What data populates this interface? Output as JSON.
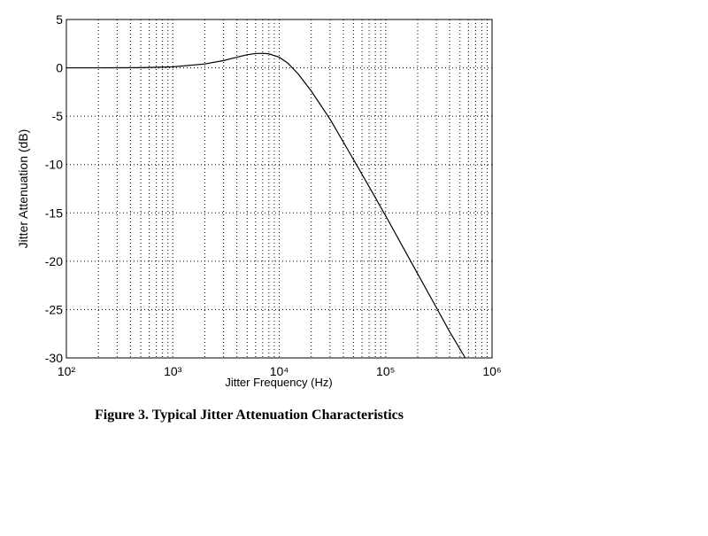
{
  "chart_data": {
    "type": "line",
    "x_label": "Jitter Frequency (Hz)",
    "y_label": "Jitter Attenuation (dB)",
    "caption": "Figure 3.  Typical Jitter Attenuation Characteristics",
    "xscale": "log",
    "xlim": [
      100,
      1000000
    ],
    "ylim": [
      -30,
      5
    ],
    "xticks": [
      {
        "value": 100,
        "label": "10²"
      },
      {
        "value": 1000,
        "label": "10³"
      },
      {
        "value": 10000,
        "label": "10⁴"
      },
      {
        "value": 100000,
        "label": "10⁵"
      },
      {
        "value": 1000000,
        "label": "10⁶"
      }
    ],
    "x_minor_ticks": [
      200,
      300,
      400,
      500,
      600,
      700,
      800,
      900,
      2000,
      3000,
      4000,
      5000,
      6000,
      7000,
      8000,
      9000,
      20000,
      30000,
      40000,
      50000,
      60000,
      70000,
      80000,
      90000,
      200000,
      300000,
      400000,
      500000,
      600000,
      700000,
      800000,
      900000
    ],
    "yticks": [
      -30,
      -25,
      -20,
      -15,
      -10,
      -5,
      0,
      5
    ],
    "grid": true,
    "series": [
      {
        "color": "#000000",
        "x": [
          100,
          200,
          500,
          1000,
          2000,
          3000,
          4000,
          5000,
          6000,
          7000,
          8000,
          10000,
          12000,
          15000,
          20000,
          30000,
          50000,
          70000,
          100000,
          200000,
          300000,
          400000,
          560000
        ],
        "values": [
          0,
          0,
          0.02,
          0.1,
          0.4,
          0.75,
          1.1,
          1.35,
          1.48,
          1.5,
          1.45,
          1.1,
          0.5,
          -0.6,
          -2.4,
          -5.3,
          -9.5,
          -12.3,
          -15.3,
          -21.3,
          -24.8,
          -27.3,
          -30
        ]
      }
    ]
  }
}
